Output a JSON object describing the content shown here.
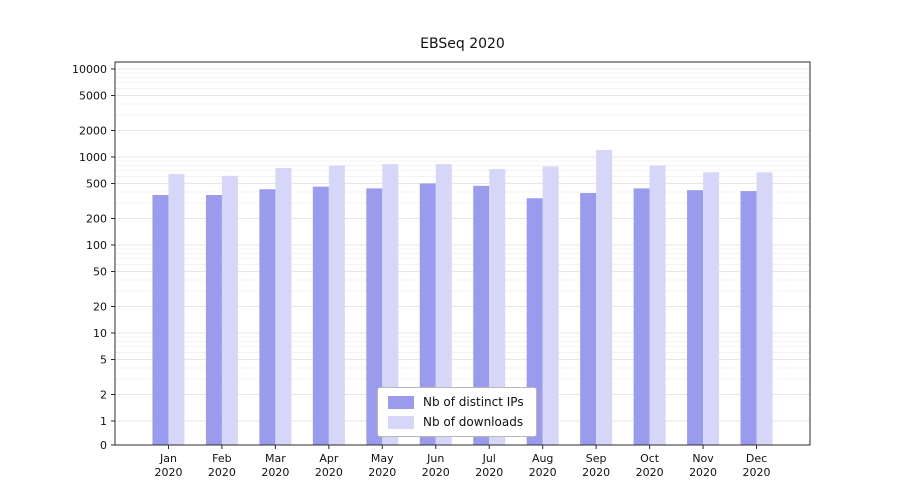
{
  "chart_data": {
    "type": "bar",
    "title": "EBSeq 2020",
    "xlabel": "",
    "ylabel": "",
    "scale": "symlog",
    "grid": true,
    "legend_position": "lower center",
    "year": "2020",
    "categories": [
      "Jan",
      "Feb",
      "Mar",
      "Apr",
      "May",
      "Jun",
      "Jul",
      "Aug",
      "Sep",
      "Oct",
      "Nov",
      "Dec"
    ],
    "yticks": [
      0,
      1,
      2,
      5,
      10,
      20,
      50,
      100,
      200,
      500,
      1000,
      2000,
      5000,
      10000
    ],
    "ylim": [
      0,
      10000
    ],
    "series": [
      {
        "name": "Nb of distinct IPs",
        "color": "#9b9bee",
        "values": [
          370,
          370,
          430,
          460,
          440,
          500,
          470,
          340,
          390,
          440,
          420,
          410
        ]
      },
      {
        "name": "Nb of downloads",
        "color": "#d6d6f8",
        "values": [
          640,
          610,
          750,
          800,
          830,
          830,
          730,
          780,
          1200,
          800,
          670,
          670
        ]
      }
    ]
  }
}
